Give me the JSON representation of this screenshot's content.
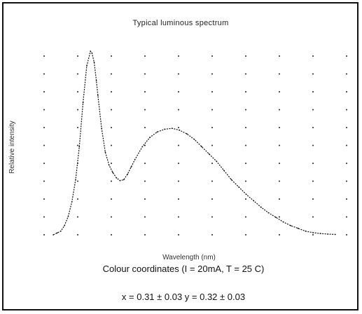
{
  "chart_data": {
    "type": "line",
    "title": "Typical luminous spectrum",
    "xlabel": "Wavelength (nm)",
    "ylabel": "Relative intensity",
    "grid": true,
    "x": [
      400,
      405,
      410,
      415,
      420,
      425,
      430,
      435,
      440,
      445,
      450,
      452,
      455,
      458,
      460,
      465,
      470,
      475,
      480,
      485,
      490,
      495,
      500,
      505,
      510,
      520,
      530,
      540,
      550,
      560,
      570,
      580,
      590,
      600,
      610,
      620,
      630,
      640,
      650,
      660,
      670,
      680,
      690,
      700,
      710,
      720,
      730,
      740,
      750,
      760,
      770,
      780
    ],
    "series": [
      {
        "values": [
          0.0,
          0.01,
          0.02,
          0.05,
          0.1,
          0.18,
          0.3,
          0.48,
          0.72,
          0.92,
          1.0,
          0.99,
          0.94,
          0.84,
          0.76,
          0.58,
          0.45,
          0.38,
          0.34,
          0.31,
          0.295,
          0.3,
          0.33,
          0.37,
          0.41,
          0.48,
          0.53,
          0.56,
          0.575,
          0.58,
          0.57,
          0.55,
          0.52,
          0.48,
          0.44,
          0.4,
          0.35,
          0.3,
          0.26,
          0.22,
          0.185,
          0.15,
          0.12,
          0.095,
          0.07,
          0.05,
          0.035,
          0.02,
          0.012,
          0.007,
          0.004,
          0.002
        ]
      }
    ],
    "xlim": [
      380,
      800
    ],
    "ylim": [
      0,
      1.05
    ],
    "legend_position": "top-right"
  },
  "caption": {
    "conditions": "Colour coordinates (I  = 20mA,  T  = 25 C)",
    "coordinates": "x = 0.31 ± 0.03    y = 0.32 ± 0.03"
  }
}
